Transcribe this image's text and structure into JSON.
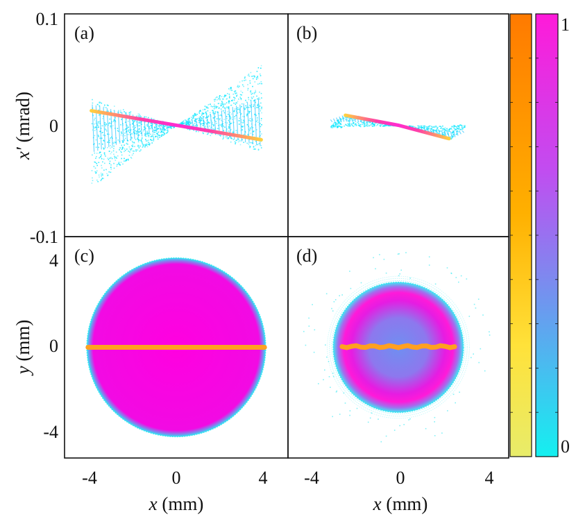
{
  "colors": {
    "bar1_top": "#ff7a00",
    "bar1_bottom": "#e8ec6a",
    "bar2_top": "#ff1ad9",
    "bar2_bottom": "#14f0f0",
    "phase_main": "#00e6ff",
    "beam_core": "#ff00e0",
    "beam_edge": "#2fe7f2",
    "slice_line": "#ffa020"
  },
  "colorbars": {
    "max_label": "1",
    "min_label": "0"
  },
  "chart_data": [
    {
      "panel": "(a)",
      "type": "scatter",
      "xlim": [
        -5,
        5
      ],
      "ylim": [
        -0.1,
        0.1
      ],
      "y_ticks": [
        "0.1",
        "0",
        "-0.1"
      ],
      "ylabel_italic": "x′",
      "ylabel_rest": " (mrad)",
      "core_line": [
        [
          -3.8,
          0.013
        ],
        [
          0,
          0.0
        ],
        [
          3.8,
          -0.013
        ]
      ],
      "envelope_top": [
        [
          -3.8,
          0.024
        ],
        [
          0,
          0.0
        ],
        [
          3.8,
          0.055
        ]
      ],
      "envelope_bottom": [
        [
          -3.8,
          -0.055
        ],
        [
          0,
          0.0
        ],
        [
          3.8,
          -0.024
        ]
      ]
    },
    {
      "panel": "(b)",
      "type": "scatter",
      "xlim": [
        -5,
        5
      ],
      "ylim": [
        -0.1,
        0.1
      ],
      "core_line": [
        [
          -2.4,
          0.009
        ],
        [
          0,
          0.0
        ],
        [
          2.3,
          -0.012
        ]
      ],
      "envelope_top": [
        [
          -3.1,
          0.001
        ],
        [
          -2.3,
          0.011
        ],
        [
          0,
          0.0
        ],
        [
          2.0,
          0.0
        ],
        [
          3.0,
          0.001
        ]
      ],
      "envelope_bottom": [
        [
          -3.1,
          -0.002
        ],
        [
          -2.0,
          -0.001
        ],
        [
          0,
          0.0
        ],
        [
          2.4,
          -0.012
        ],
        [
          3.0,
          -0.001
        ]
      ]
    },
    {
      "panel": "(c)",
      "type": "heatmap",
      "xlim": [
        -5,
        5
      ],
      "ylim": [
        -5,
        5
      ],
      "x_ticks": [
        "-4",
        "0",
        "4"
      ],
      "y_ticks": [
        "4",
        "0",
        "-4"
      ],
      "xlabel_italic": "x",
      "xlabel_rest": " (mm)",
      "ylabel_italic": "y",
      "ylabel_rest": " (mm)",
      "beam_radius": 4.0,
      "slice_y": 0
    },
    {
      "panel": "(d)",
      "type": "heatmap",
      "xlim": [
        -5,
        5
      ],
      "ylim": [
        -5,
        5
      ],
      "x_ticks": [
        "-4",
        "0",
        "4"
      ],
      "xlabel_italic": "x",
      "xlabel_rest": " (mm)",
      "core_radius": 2.5,
      "halo_radius": 3.2,
      "slice_y": 0
    }
  ]
}
